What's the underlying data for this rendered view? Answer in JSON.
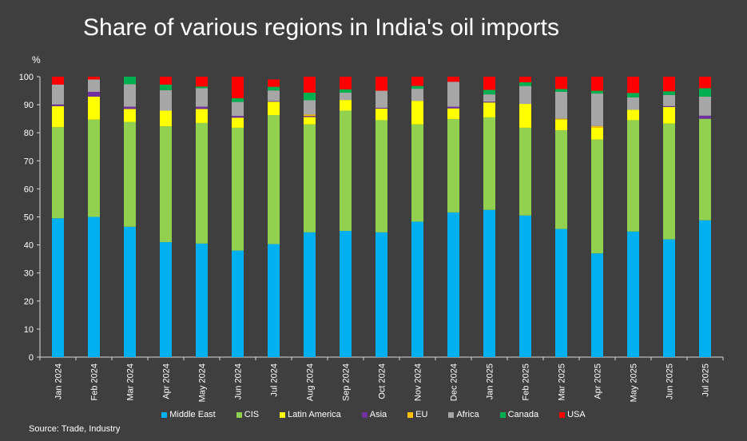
{
  "title": "Share of various regions in India's oil imports",
  "unit_label": "%",
  "source": "Source: Trade, Industry",
  "chart_data": {
    "type": "bar",
    "stacked": true,
    "categories": [
      "Jan 2024",
      "Feb 2024",
      "Mar 2024",
      "Apr 2024",
      "May 2024",
      "Jun 2024",
      "Jul 2024",
      "Aug 2024",
      "Sep 2024",
      "Oct 2024",
      "Nov 2024",
      "Dec 2024",
      "Jan 2025",
      "Feb 2025",
      "Mar 2025",
      "Apr 2025",
      "May 2025",
      "Jun 2025",
      "Jul 2025"
    ],
    "ylim": [
      0,
      100
    ],
    "yticks": [
      0,
      10,
      20,
      30,
      40,
      50,
      60,
      70,
      80,
      90,
      100
    ],
    "legend_position": "bottom",
    "grid": false,
    "series": [
      {
        "name": "Middle East",
        "color": "#00b0f0",
        "values": [
          49.5,
          50,
          46.5,
          41,
          40.5,
          38,
          40.3,
          44.5,
          45,
          44.5,
          48.3,
          51.6,
          52.5,
          50.5,
          45.7,
          37,
          44.8,
          42,
          48.8
        ]
      },
      {
        "name": "CIS",
        "color": "#92d050",
        "values": [
          32.5,
          34.7,
          37.4,
          41.3,
          43,
          43.8,
          46,
          38.5,
          42.9,
          40,
          34.7,
          33.3,
          33,
          31.3,
          35.2,
          40.6,
          39.7,
          41.3,
          36.2
        ]
      },
      {
        "name": "Latin America",
        "color": "#ffff00",
        "values": [
          7.5,
          8.2,
          4.6,
          5.6,
          5,
          3.6,
          4.8,
          2.6,
          3.8,
          4.1,
          8.4,
          3.8,
          5.3,
          8.5,
          3.8,
          4.2,
          3.7,
          5.9,
          0
        ]
      },
      {
        "name": "Asia",
        "color": "#7030a0",
        "values": [
          0.6,
          1.7,
          0.8,
          0,
          0.8,
          0.6,
          0.2,
          0.4,
          0,
          0.3,
          0,
          0.6,
          0.3,
          0,
          0,
          0,
          0,
          0.3,
          1.1
        ]
      },
      {
        "name": "EU",
        "color": "#ffc000",
        "values": [
          0,
          0,
          0,
          0,
          0,
          0,
          0,
          0.5,
          0,
          0,
          0,
          0,
          0,
          0,
          0.3,
          0.6,
          0,
          0,
          0
        ]
      },
      {
        "name": "Africa",
        "color": "#a6a6a6",
        "values": [
          7.1,
          4.4,
          8,
          7.3,
          6.6,
          5,
          3.8,
          5.1,
          2.6,
          6.1,
          4.3,
          8.9,
          2.6,
          6.4,
          9.6,
          11.6,
          4.4,
          4,
          6.8
        ]
      },
      {
        "name": "Canada",
        "color": "#00b050",
        "values": [
          0,
          0,
          2.7,
          2,
          0.6,
          1.3,
          1.3,
          2.7,
          1.2,
          0,
          1,
          0,
          1.6,
          1.3,
          1,
          1,
          1.6,
          1.3,
          3
        ]
      },
      {
        "name": "USA",
        "color": "#ff0000",
        "values": [
          2.8,
          1,
          0,
          2.8,
          3.5,
          7.7,
          2.6,
          5.7,
          4.5,
          5,
          3.3,
          1.8,
          4.7,
          2,
          4.4,
          5,
          5.8,
          5.2,
          4.1
        ]
      }
    ]
  }
}
